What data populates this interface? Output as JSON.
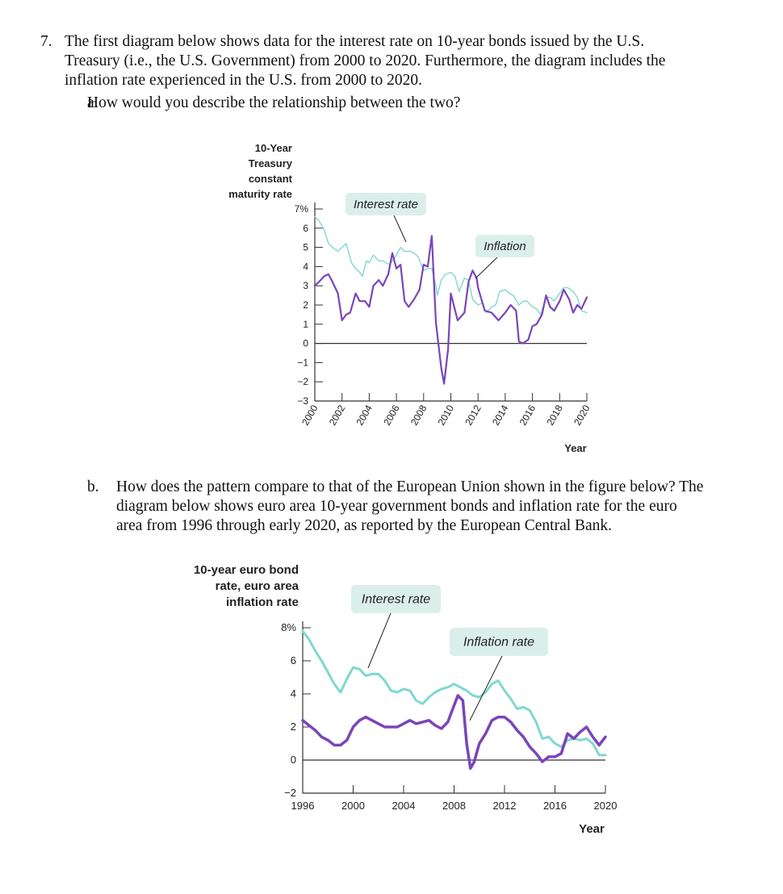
{
  "question": {
    "number": "7.",
    "text_lines": [
      "The first diagram below shows data for the interest rate on 10-year bonds issued by the U.S.",
      "Treasury (i.e., the U.S. Government) from 2000 to 2020. Furthermore, the diagram includes the",
      "inflation rate experienced in the U.S. from 2000 to 2020."
    ],
    "part_a": {
      "letter": "a.",
      "text": "How would you describe the relationship between the two?"
    },
    "part_b": {
      "letter": "b.",
      "text_lines": [
        "How does the pattern compare to that of the European Union shown in the figure below? The",
        "diagram below shows euro area 10-year government bonds and inflation rate for the euro",
        "area from 1996 through early 2020, as reported by the European Central Bank."
      ]
    }
  },
  "colors": {
    "interest_rate": "#7fd8cf",
    "inflation": "#7b45b8",
    "label_box": "#dbefea",
    "axis": "#333333"
  },
  "chart_data": [
    {
      "type": "line",
      "ylabel_lines": [
        "10-Year",
        "Treasury",
        "constant",
        "maturity rate"
      ],
      "xlabel": "Year",
      "ylim": [
        -3,
        7
      ],
      "xlim": [
        2000,
        2020
      ],
      "y_tick_labels": [
        "7%",
        "6",
        "5",
        "4",
        "3",
        "2",
        "1",
        "0",
        "−1",
        "−2",
        "−3"
      ],
      "x_tick_labels": [
        "2000",
        "2002",
        "2004",
        "2006",
        "2008",
        "2010",
        "2012",
        "2014",
        "2016",
        "2018",
        "2020"
      ],
      "annotations": [
        "Interest rate",
        "Inflation"
      ],
      "series": [
        {
          "name": "Interest rate",
          "x": [
            2000,
            2000.3,
            2000.7,
            2001,
            2001.3,
            2001.7,
            2002,
            2002.3,
            2002.7,
            2003,
            2003.3,
            2003.5,
            2003.8,
            2004,
            2004.3,
            2004.7,
            2005,
            2005.5,
            2006,
            2006.3,
            2006.6,
            2007,
            2007.3,
            2007.6,
            2008,
            2008.3,
            2008.6,
            2008.9,
            2009,
            2009.3,
            2009.6,
            2010,
            2010.3,
            2010.6,
            2011,
            2011.3,
            2011.6,
            2012,
            2012.3,
            2012.6,
            2013,
            2013.3,
            2013.6,
            2014,
            2014.3,
            2014.6,
            2015,
            2015.3,
            2015.6,
            2016,
            2016.3,
            2016.6,
            2017,
            2017.3,
            2017.6,
            2018,
            2018.3,
            2018.6,
            2019,
            2019.3,
            2019.6,
            2020
          ],
          "values": [
            6.6,
            6.4,
            5.9,
            5.2,
            5.0,
            4.8,
            5.0,
            5.2,
            4.2,
            3.9,
            3.7,
            3.5,
            4.3,
            4.2,
            4.6,
            4.3,
            4.3,
            4.1,
            4.6,
            5.0,
            4.8,
            4.8,
            4.7,
            4.5,
            3.8,
            3.9,
            3.9,
            3.0,
            2.5,
            3.3,
            3.6,
            3.7,
            3.5,
            2.7,
            3.4,
            3.3,
            2.3,
            2.0,
            2.1,
            1.6,
            1.9,
            2.0,
            2.7,
            2.8,
            2.6,
            2.5,
            2.0,
            2.2,
            2.2,
            1.9,
            1.8,
            1.5,
            2.4,
            2.4,
            2.2,
            2.6,
            2.9,
            2.9,
            2.7,
            2.4,
            1.7,
            1.6
          ]
        },
        {
          "name": "Inflation",
          "x": [
            2000,
            2000.3,
            2000.7,
            2001,
            2001.3,
            2001.7,
            2002,
            2002.3,
            2002.6,
            2003,
            2003.3,
            2003.7,
            2004,
            2004.3,
            2004.7,
            2005,
            2005.4,
            2005.7,
            2006,
            2006.3,
            2006.6,
            2006.9,
            2007.3,
            2007.7,
            2008,
            2008.3,
            2008.6,
            2008.9,
            2009.1,
            2009.3,
            2009.5,
            2009.8,
            2010,
            2010.5,
            2011,
            2011.3,
            2011.6,
            2011.9,
            2012,
            2012.5,
            2013,
            2013.5,
            2014,
            2014.4,
            2014.8,
            2015,
            2015.3,
            2015.7,
            2016,
            2016.3,
            2016.7,
            2017,
            2017.3,
            2017.6,
            2018,
            2018.3,
            2018.7,
            2019,
            2019.3,
            2019.6,
            2020
          ],
          "values": [
            3.0,
            3.2,
            3.5,
            3.6,
            3.2,
            2.6,
            1.2,
            1.5,
            1.6,
            2.6,
            2.2,
            2.2,
            1.9,
            3.0,
            3.3,
            3.0,
            3.6,
            4.7,
            3.9,
            4.1,
            2.2,
            1.9,
            2.3,
            2.8,
            4.1,
            4.0,
            5.6,
            1.1,
            -0.1,
            -1.3,
            -2.1,
            -0.3,
            2.6,
            1.2,
            1.6,
            3.2,
            3.8,
            3.4,
            2.9,
            1.7,
            1.6,
            1.2,
            1.6,
            2.0,
            1.7,
            0.1,
            0.0,
            0.2,
            0.9,
            1.0,
            1.5,
            2.5,
            1.9,
            1.7,
            2.2,
            2.8,
            2.3,
            1.6,
            2.0,
            1.8,
            2.4
          ]
        }
      ]
    },
    {
      "type": "line",
      "ylabel_lines": [
        "10-year euro bond",
        "rate, euro area",
        "inflation rate"
      ],
      "xlabel": "Year",
      "ylim": [
        -2,
        8
      ],
      "xlim": [
        1996,
        2020
      ],
      "y_tick_labels": [
        "8%",
        "6",
        "4",
        "2",
        "0",
        "−2"
      ],
      "x_tick_labels": [
        "1996",
        "2000",
        "2004",
        "2008",
        "2012",
        "2016",
        "2020"
      ],
      "annotations": [
        "Interest rate",
        "Inflation rate"
      ],
      "series": [
        {
          "name": "Interest rate",
          "x": [
            1996,
            1996.5,
            1997,
            1997.5,
            1998,
            1998.5,
            1999,
            1999.5,
            2000,
            2000.5,
            2001,
            2001.5,
            2002,
            2002.5,
            2003,
            2003.5,
            2004,
            2004.5,
            2005,
            2005.5,
            2006,
            2006.5,
            2007,
            2007.5,
            2008,
            2008.5,
            2009,
            2009.5,
            2010,
            2010.5,
            2011,
            2011.5,
            2012,
            2012.5,
            2013,
            2013.5,
            2014,
            2014.5,
            2015,
            2015.5,
            2016,
            2016.5,
            2017,
            2017.5,
            2018,
            2018.5,
            2019,
            2019.5,
            2020
          ],
          "values": [
            7.8,
            7.3,
            6.6,
            6.0,
            5.3,
            4.6,
            4.1,
            4.9,
            5.6,
            5.5,
            5.1,
            5.2,
            5.2,
            4.8,
            4.2,
            4.1,
            4.3,
            4.2,
            3.6,
            3.4,
            3.8,
            4.1,
            4.3,
            4.4,
            4.6,
            4.4,
            4.2,
            3.9,
            3.8,
            4.1,
            4.6,
            4.8,
            4.2,
            3.7,
            3.1,
            3.2,
            3.0,
            2.3,
            1.3,
            1.4,
            1.0,
            0.8,
            1.2,
            1.3,
            1.2,
            1.3,
            1.0,
            0.3,
            0.3
          ]
        },
        {
          "name": "Inflation rate",
          "x": [
            1996,
            1996.5,
            1997,
            1997.5,
            1998,
            1998.5,
            1999,
            1999.5,
            2000,
            2000.5,
            2001,
            2001.5,
            2002,
            2002.5,
            2003,
            2003.5,
            2004,
            2004.5,
            2005,
            2005.5,
            2006,
            2006.5,
            2007,
            2007.5,
            2008,
            2008.3,
            2008.7,
            2009,
            2009.3,
            2009.6,
            2010,
            2010.5,
            2011,
            2011.5,
            2012,
            2012.5,
            2013,
            2013.5,
            2014,
            2014.5,
            2015,
            2015.5,
            2016,
            2016.5,
            2017,
            2017.5,
            2018,
            2018.5,
            2019,
            2019.5,
            2020
          ],
          "values": [
            2.4,
            2.1,
            1.8,
            1.4,
            1.2,
            0.9,
            0.9,
            1.2,
            2.0,
            2.4,
            2.6,
            2.4,
            2.2,
            2.0,
            2.0,
            2.0,
            2.2,
            2.4,
            2.2,
            2.3,
            2.4,
            2.1,
            1.9,
            2.3,
            3.3,
            3.9,
            3.6,
            1.0,
            -0.5,
            -0.1,
            1.0,
            1.6,
            2.4,
            2.6,
            2.6,
            2.3,
            1.8,
            1.4,
            0.8,
            0.4,
            -0.1,
            0.2,
            0.2,
            0.4,
            1.6,
            1.3,
            1.7,
            2.0,
            1.4,
            0.9,
            1.4
          ]
        }
      ]
    }
  ]
}
